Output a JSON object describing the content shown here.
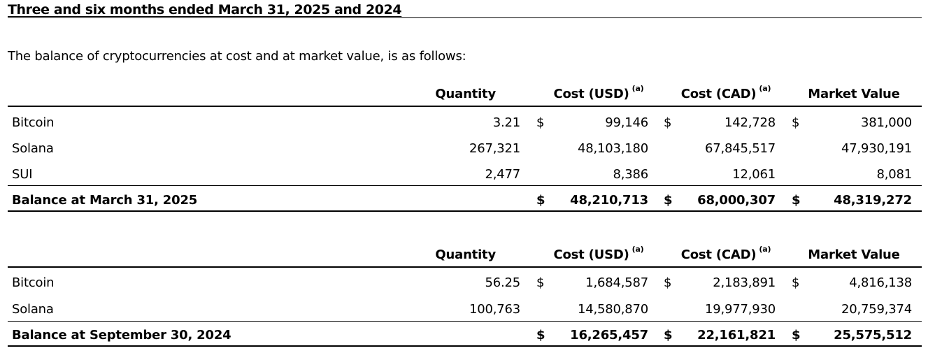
{
  "title": "Three and six months ended March 31, 2025 and 2024",
  "intro": "The balance of cryptocurrencies at cost and at market value, is as follows:",
  "headers": {
    "quantity": "Quantity",
    "cost_usd": "Cost (USD)",
    "cost_cad": "Cost (CAD)",
    "market_value": "Market Value",
    "footnote_mark": "(a)"
  },
  "table1": {
    "rows": [
      {
        "name": "Bitcoin",
        "quantity": "3.21",
        "dollar1": "$",
        "cost_usd": "99,146",
        "dollar2": "$",
        "cost_cad": "142,728",
        "dollar3": "$",
        "market_value": "381,000"
      },
      {
        "name": "Solana",
        "quantity": "267,321",
        "dollar1": "",
        "cost_usd": "48,103,180",
        "dollar2": "",
        "cost_cad": "67,845,517",
        "dollar3": "",
        "market_value": "47,930,191"
      },
      {
        "name": "SUI",
        "quantity": "2,477",
        "dollar1": "",
        "cost_usd": "8,386",
        "dollar2": "",
        "cost_cad": "12,061",
        "dollar3": "",
        "market_value": "8,081"
      }
    ],
    "total": {
      "name": "Balance at March 31, 2025",
      "dollar1": "$",
      "cost_usd": "48,210,713",
      "dollar2": "$",
      "cost_cad": "68,000,307",
      "dollar3": "$",
      "market_value": "48,319,272"
    }
  },
  "table2": {
    "rows": [
      {
        "name": "Bitcoin",
        "quantity": "56.25",
        "dollar1": "$",
        "cost_usd": "1,684,587",
        "dollar2": "$",
        "cost_cad": "2,183,891",
        "dollar3": "$",
        "market_value": "4,816,138"
      },
      {
        "name": "Solana",
        "quantity": "100,763",
        "dollar1": "",
        "cost_usd": "14,580,870",
        "dollar2": "",
        "cost_cad": "19,977,930",
        "dollar3": "",
        "market_value": "20,759,374"
      }
    ],
    "total": {
      "name": "Balance at September 30, 2024",
      "dollar1": "$",
      "cost_usd": "16,265,457",
      "dollar2": "$",
      "cost_cad": "22,161,821",
      "dollar3": "$",
      "market_value": "25,575,512"
    }
  }
}
